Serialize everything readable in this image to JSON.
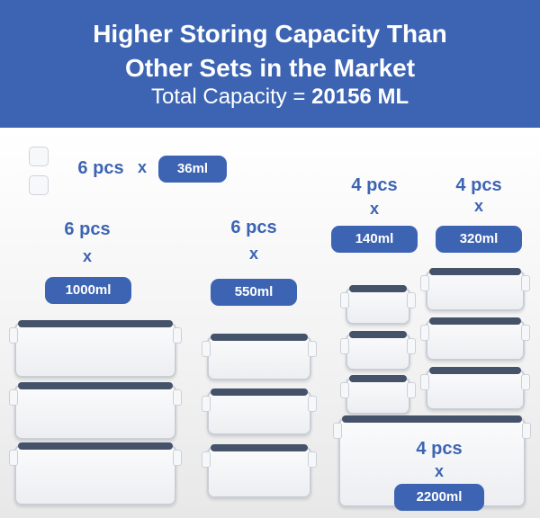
{
  "header": {
    "line1": "Higher Storing Capacity Than",
    "line2": "Other Sets in the Market",
    "capacity_label": "Total Capacity =",
    "capacity_value": "20156 ML"
  },
  "colors": {
    "brand_blue": "#3d64b3",
    "lid_navy": "#44526a"
  },
  "items": {
    "small": {
      "count": "6 pcs",
      "times": "x",
      "size": "36ml"
    },
    "large": {
      "count": "6 pcs",
      "times": "x",
      "size": "1000ml"
    },
    "medium": {
      "count": "6 pcs",
      "times": "x",
      "size": "550ml"
    },
    "mini": {
      "count": "4 pcs",
      "times": "x",
      "size": "140ml"
    },
    "midi": {
      "count": "4 pcs",
      "times": "x",
      "size": "320ml"
    },
    "xl": {
      "count": "4 pcs",
      "times": "x",
      "size": "2200ml"
    }
  }
}
